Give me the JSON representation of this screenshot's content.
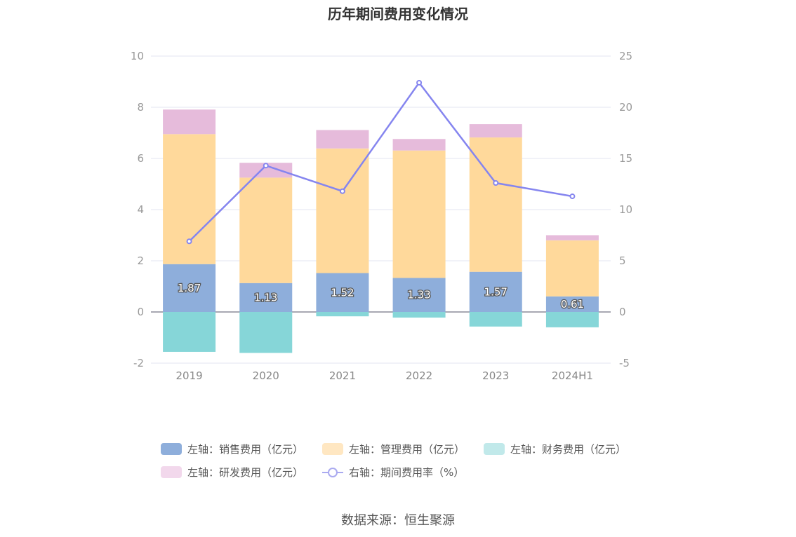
{
  "chart_data": {
    "type": "bar",
    "title": "历年期间费用变化情况",
    "categories": [
      "2019",
      "2020",
      "2021",
      "2022",
      "2023",
      "2024H1"
    ],
    "series": [
      {
        "name": "左轴：销售费用（亿元）",
        "axis": "left",
        "values": [
          1.87,
          1.13,
          1.52,
          1.33,
          1.57,
          0.61
        ],
        "color": "#8eaedb",
        "show_labels": true
      },
      {
        "name": "左轴：管理费用（亿元）",
        "axis": "left",
        "values": [
          5.08,
          4.12,
          4.87,
          4.98,
          5.25,
          2.19
        ],
        "color": "#ffd99b",
        "show_labels": false
      },
      {
        "name": "左轴：财务费用（亿元）",
        "axis": "left",
        "values": [
          -1.56,
          -1.6,
          -0.17,
          -0.22,
          -0.57,
          -0.6
        ],
        "color": "#86d6d8",
        "show_labels": false
      },
      {
        "name": "左轴：研发费用（亿元）",
        "axis": "left",
        "values": [
          0.96,
          0.58,
          0.72,
          0.45,
          0.52,
          0.2
        ],
        "color": "#e6bbdb",
        "show_labels": false
      },
      {
        "name": "右轴：期间费用率（%）",
        "axis": "right",
        "type": "line",
        "values": [
          6.9,
          14.3,
          11.8,
          22.4,
          12.6,
          11.3
        ],
        "color": "#8585ef"
      }
    ],
    "left_axis": {
      "ylim": [
        -2,
        10
      ],
      "ticks": [
        -2,
        0,
        2,
        4,
        6,
        8,
        10
      ]
    },
    "right_axis": {
      "ylim": [
        -5,
        25
      ],
      "ticks": [
        -5,
        0,
        5,
        10,
        15,
        20,
        25
      ]
    },
    "grid": true,
    "legend_position": "bottom"
  },
  "legend": [
    {
      "label": "左轴：销售费用（亿元）",
      "color": "#8eaedb",
      "kind": "box"
    },
    {
      "label": "左轴：管理费用（亿元）",
      "color": "#ffe7c2",
      "kind": "box"
    },
    {
      "label": "左轴：财务费用（亿元）",
      "color": "#c1e9ea",
      "kind": "box"
    },
    {
      "label": "左轴：研发费用（亿元）",
      "color": "#f2d8ec",
      "kind": "box"
    },
    {
      "label": "右轴：期间费用率（%）",
      "color": "#aaaaf0",
      "kind": "line"
    }
  ],
  "source": "数据来源：恒生聚源"
}
